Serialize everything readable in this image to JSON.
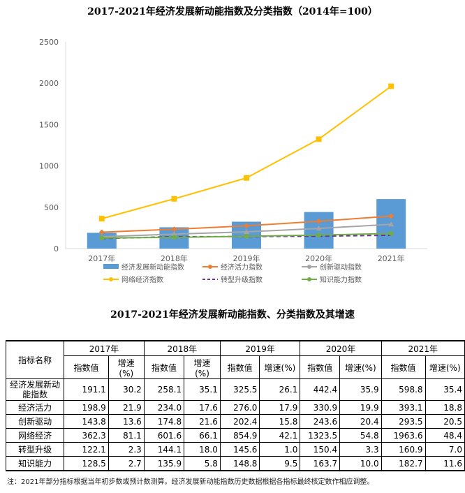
{
  "chart_data": {
    "type": "bar+line",
    "title": "2017-2021年经济发展新动能指数及分类指数（2014年=100）",
    "categories": [
      "2017年",
      "2018年",
      "2019年",
      "2020年",
      "2021年"
    ],
    "ylim": [
      0,
      2500
    ],
    "yticks": [
      0,
      500,
      1000,
      1500,
      2000,
      2500
    ],
    "legend_position": "bottom",
    "series": [
      {
        "name": "经济发展新动能指数",
        "kind": "bar",
        "color": "#5b9bd5",
        "values": [
          191.1,
          258.1,
          325.5,
          442.4,
          598.8
        ]
      },
      {
        "name": "经济活力指数",
        "kind": "line",
        "marker": "diamond",
        "color": "#ed7d31",
        "values": [
          198.9,
          234.0,
          276.0,
          330.9,
          393.1
        ]
      },
      {
        "name": "创新驱动指数",
        "kind": "line",
        "marker": "triangle",
        "color": "#a5a5a5",
        "values": [
          143.8,
          174.8,
          202.4,
          243.6,
          293.5
        ]
      },
      {
        "name": "网络经济指数",
        "kind": "line",
        "marker": "square",
        "color": "#ffc000",
        "values": [
          362.3,
          601.6,
          854.9,
          1323.5,
          1963.6
        ]
      },
      {
        "name": "转型升级指数",
        "kind": "line",
        "dash": true,
        "color": "#7030a0",
        "values": [
          122.1,
          144.1,
          145.6,
          150.4,
          160.9
        ]
      },
      {
        "name": "知识能力指数",
        "kind": "line",
        "marker": "circle",
        "color": "#70ad47",
        "values": [
          128.5,
          135.9,
          148.8,
          163.7,
          182.7
        ]
      }
    ]
  },
  "table": {
    "title": "2017-2021年经济发展新动能指数、分类指数及其增速",
    "name_header": "指标名称",
    "years": [
      "2017年",
      "2018年",
      "2019年",
      "2020年",
      "2021年"
    ],
    "sub_index": "指数值",
    "sub_growth": "增速(%)",
    "sub_growth_2018": "增速\n(%)",
    "rows": [
      {
        "name": "经济发展新动能指数",
        "cells": [
          "191.1",
          "30.2",
          "258.1",
          "35.1",
          "325.5",
          "26.1",
          "442.4",
          "35.9",
          "598.8",
          "35.4"
        ]
      },
      {
        "name": "经济活力",
        "cells": [
          "198.9",
          "21.9",
          "234.0",
          "17.6",
          "276.0",
          "17.9",
          "330.9",
          "19.9",
          "393.1",
          "18.8"
        ]
      },
      {
        "name": "创新驱动",
        "cells": [
          "143.8",
          "13.6",
          "174.8",
          "21.6",
          "202.4",
          "15.8",
          "243.6",
          "20.4",
          "293.5",
          "20.5"
        ]
      },
      {
        "name": "网络经济",
        "cells": [
          "362.3",
          "81.1",
          "601.6",
          "66.1",
          "854.9",
          "42.1",
          "1323.5",
          "54.8",
          "1963.6",
          "48.4"
        ]
      },
      {
        "name": "转型升级",
        "cells": [
          "122.1",
          "2.3",
          "144.1",
          "18.0",
          "145.6",
          "1.0",
          "150.4",
          "3.3",
          "160.9",
          "7.0"
        ]
      },
      {
        "name": "知识能力",
        "cells": [
          "128.5",
          "2.7",
          "135.9",
          "5.8",
          "148.8",
          "9.5",
          "163.7",
          "10.0",
          "182.7",
          "11.6"
        ]
      }
    ]
  },
  "note": "注：2021年部分指标根据当年初步数或预计数测算。经济发展新动能指数历史数据根据各指标最终核定数作相应调整。"
}
